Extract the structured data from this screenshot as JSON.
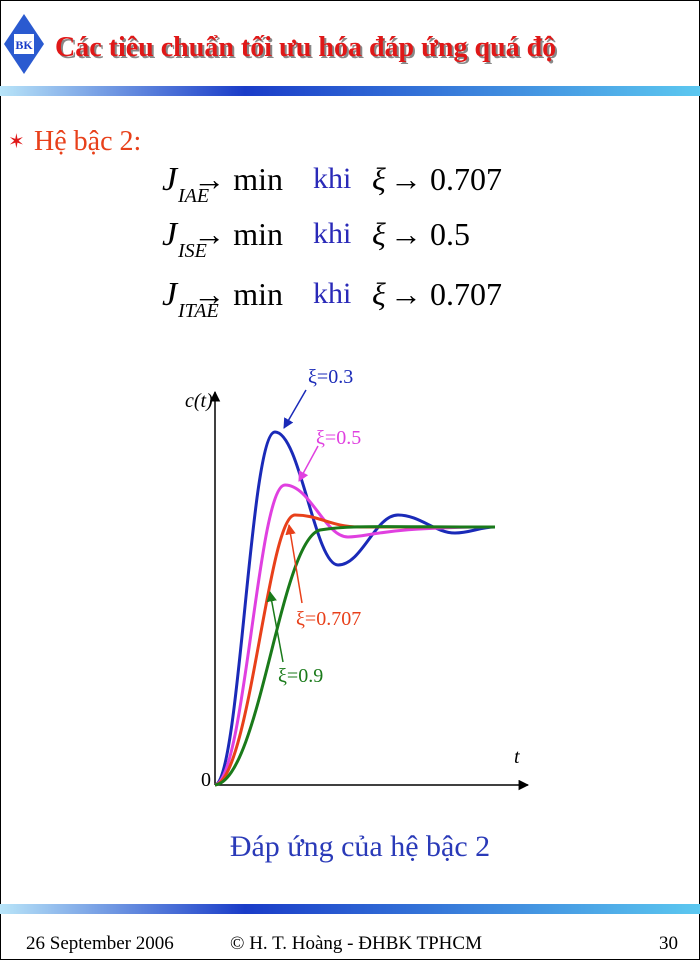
{
  "header": {
    "logo_text": "BK",
    "title": "Các tiêu chuẩn tối ưu hóa đáp ứng quá độ"
  },
  "bullet": {
    "symbol": "✶",
    "text": "Hệ bậc 2:"
  },
  "equations": [
    {
      "symbol": "J",
      "subscript": "IAE",
      "target": "→ min",
      "condition": "khi",
      "variable": "ξ",
      "limit": "→ 0.707"
    },
    {
      "symbol": "J",
      "subscript": "ISE",
      "target": "→ min",
      "condition": "khi",
      "variable": "ξ",
      "limit": "→ 0.5"
    },
    {
      "symbol": "J",
      "subscript": "ITAE",
      "target": "→ min",
      "condition": "khi",
      "variable": "ξ",
      "limit": "→ 0.707"
    }
  ],
  "figure": {
    "y_label": "c(t)",
    "x_label": "t",
    "origin": "0",
    "curves": [
      {
        "label": "ξ=0.3"
      },
      {
        "label": "ξ=0.5"
      },
      {
        "label": "ξ=0.707"
      },
      {
        "label": "ξ=0.9"
      }
    ],
    "caption": "Đáp ứng của hệ bậc 2"
  },
  "footer": {
    "date": "26 September 2006",
    "author": "© H. T. Hoàng -  ĐHBK TPHCM",
    "page": "30"
  }
}
